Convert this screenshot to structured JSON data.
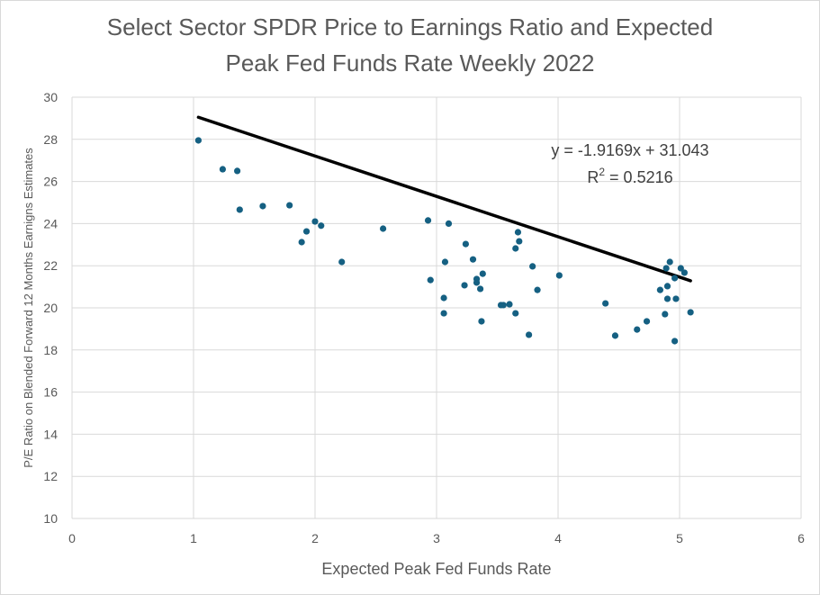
{
  "chart_data": {
    "type": "scatter",
    "title_lines": [
      "Select Sector SPDR Price to Earnings Ratio and Expected",
      "Peak Fed Funds Rate Weekly 2022"
    ],
    "xlabel": "Expected Peak Fed Funds Rate",
    "ylabel": "P/E Ratio on Blended Forward 12 Months Earnigns Estimates",
    "xlim": [
      0,
      6
    ],
    "ylim": [
      10,
      30
    ],
    "xticks": [
      "0",
      "1",
      "2",
      "3",
      "4",
      "5",
      "6"
    ],
    "yticks": [
      "10",
      "12",
      "14",
      "16",
      "18",
      "20",
      "22",
      "24",
      "26",
      "28",
      "30"
    ],
    "grid": true,
    "marker_color": "#156082",
    "trendline_color": "#000000",
    "trendline": {
      "slope": -1.9169,
      "intercept": 31.043,
      "equation": "y = -1.9169x + 31.043",
      "r2_label": "R",
      "r2_sup": "2",
      "r2_value": " = 0.5216"
    },
    "points": [
      [
        1.04,
        27.95
      ],
      [
        1.24,
        26.58
      ],
      [
        1.36,
        26.5
      ],
      [
        1.38,
        24.66
      ],
      [
        1.57,
        24.83
      ],
      [
        1.79,
        24.87
      ],
      [
        1.89,
        23.12
      ],
      [
        1.93,
        23.63
      ],
      [
        2.0,
        24.1
      ],
      [
        2.05,
        23.9
      ],
      [
        2.22,
        22.18
      ],
      [
        2.56,
        23.76
      ],
      [
        2.93,
        24.15
      ],
      [
        2.95,
        21.32
      ],
      [
        3.06,
        20.47
      ],
      [
        3.06,
        19.74
      ],
      [
        3.07,
        22.18
      ],
      [
        3.1,
        24.0
      ],
      [
        3.24,
        23.03
      ],
      [
        3.23,
        21.07
      ],
      [
        3.3,
        22.3
      ],
      [
        3.33,
        21.37
      ],
      [
        3.33,
        21.2
      ],
      [
        3.36,
        20.9
      ],
      [
        3.38,
        21.62
      ],
      [
        3.37,
        19.36
      ],
      [
        3.53,
        20.13
      ],
      [
        3.55,
        20.13
      ],
      [
        3.6,
        20.17
      ],
      [
        3.65,
        22.82
      ],
      [
        3.67,
        23.59
      ],
      [
        3.68,
        23.16
      ],
      [
        3.65,
        19.74
      ],
      [
        3.76,
        18.72
      ],
      [
        3.79,
        21.97
      ],
      [
        3.83,
        20.85
      ],
      [
        4.01,
        21.54
      ],
      [
        4.39,
        20.21
      ],
      [
        4.47,
        18.68
      ],
      [
        4.65,
        18.97
      ],
      [
        4.73,
        19.36
      ],
      [
        4.84,
        20.85
      ],
      [
        4.88,
        19.7
      ],
      [
        4.89,
        21.88
      ],
      [
        4.9,
        21.03
      ],
      [
        4.9,
        20.43
      ],
      [
        4.92,
        22.18
      ],
      [
        4.96,
        21.41
      ],
      [
        4.97,
        20.43
      ],
      [
        4.96,
        18.42
      ],
      [
        5.01,
        21.88
      ],
      [
        5.04,
        21.67
      ],
      [
        5.09,
        19.79
      ]
    ]
  }
}
